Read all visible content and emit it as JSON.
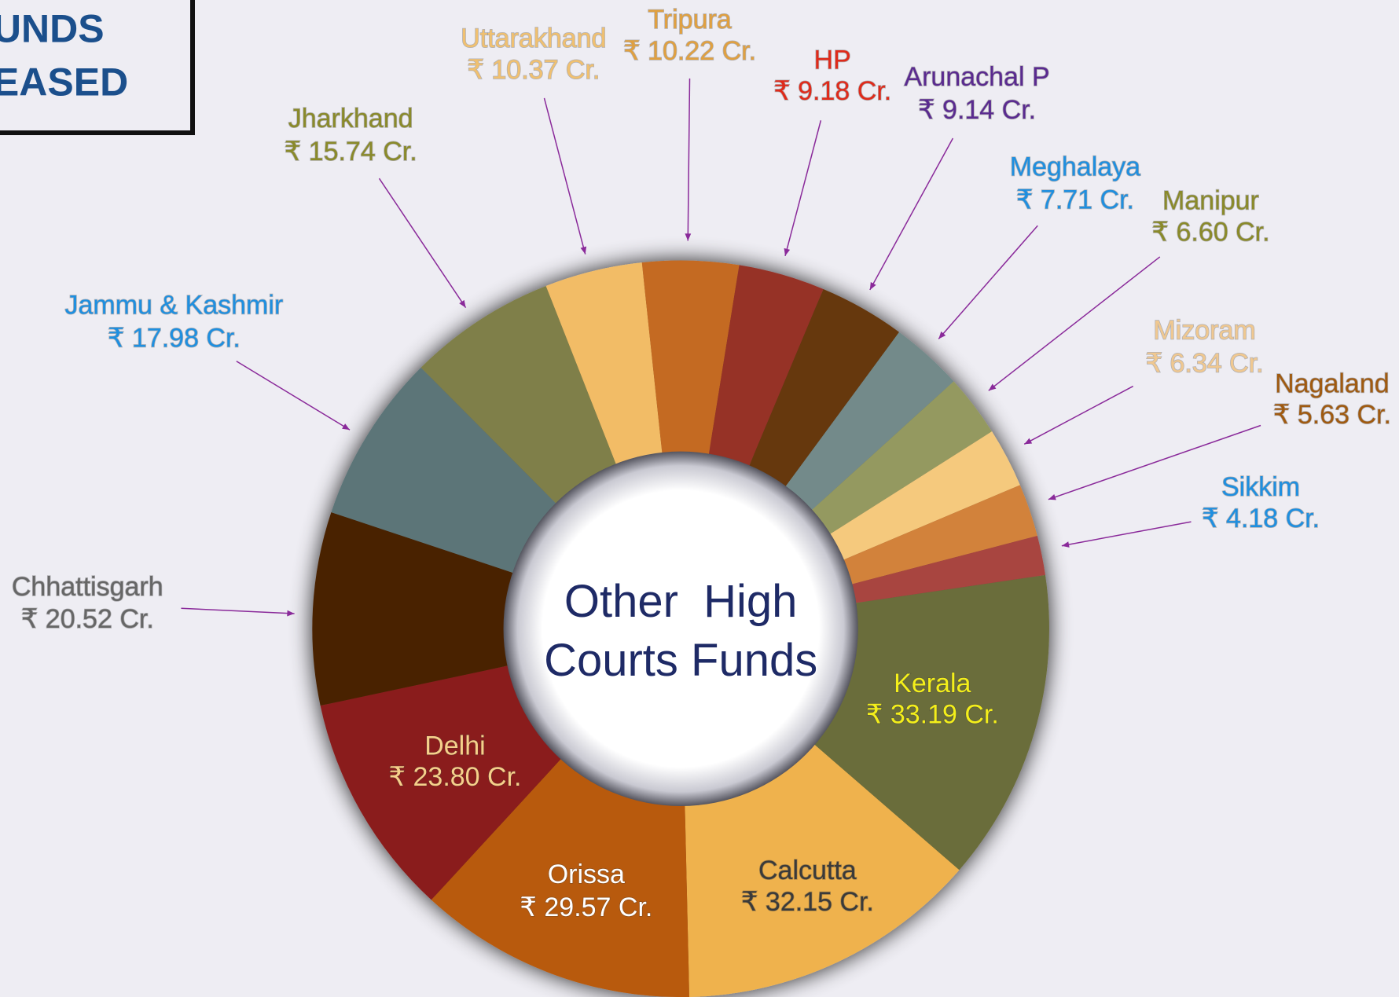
{
  "chart_data": {
    "type": "donut",
    "annotations": [
      "UNDS",
      "EASED"
    ],
    "title": [
      "Other  High",
      "Courts Funds"
    ],
    "categories": [
      "Kerala",
      "Calcutta",
      "Orissa",
      "Delhi",
      "Chhattisgarh",
      "Jammu & Kashmir",
      "Jharkhand",
      "Uttarakhand",
      "Tripura",
      "HP",
      "Arunachal P",
      "Meghalaya",
      "Manipur",
      "Mizoram",
      "Nagaland",
      "Sikkim"
    ],
    "values": [
      33.19,
      32.15,
      29.57,
      23.8,
      20.52,
      17.98,
      15.74,
      10.37,
      10.22,
      9.18,
      9.14,
      7.71,
      6.6,
      6.34,
      5.63,
      4.18
    ],
    "value_labels": [
      "₹ 33.19 Cr.",
      "₹ 32.15 Cr.",
      "₹ 29.57 Cr.",
      "₹ 23.80 Cr.",
      "₹ 20.52 Cr.",
      "₹ 17.98 Cr.",
      "₹ 15.74 Cr.",
      "₹ 10.37 Cr.",
      "₹ 10.22 Cr.",
      "₹ 9.18 Cr.",
      "₹ 9.14 Cr.",
      "₹ 7.71 Cr.",
      "₹ 6.60 Cr.",
      "₹ 6.34 Cr.",
      "₹ 5.63 Cr.",
      "₹ 4.18 Cr."
    ],
    "colors": [
      "#6b6d3a",
      "#efb24e",
      "#b85a0b",
      "#8a1f1a",
      "#4a2400",
      "#5c7478",
      "#7f7f4a",
      "#f2bc66",
      "#c46a22",
      "#963028",
      "#66380f",
      "#738a8a",
      "#949961",
      "#f5c97d",
      "#d2823b",
      "#a84540"
    ],
    "label_colors": [
      "#f4ef1a",
      "#3a3a3a",
      "#ffffff",
      "#f6d08a",
      "#666666",
      "#1e8fe0",
      "#8a8a2a",
      "#f0c070",
      "#e0a040",
      "#e02a1a",
      "#5a2a90",
      "#1e8fe0",
      "#8a8a2a",
      "#f0c890",
      "#a05a10",
      "#1e8fe0"
    ]
  }
}
